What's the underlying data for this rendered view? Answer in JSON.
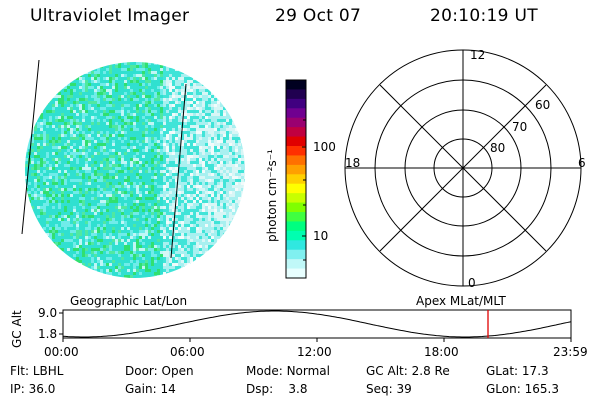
{
  "header": {
    "title": "Ultraviolet Imager",
    "date": "29 Oct 07",
    "time": "20:10:19 UT"
  },
  "colorbar": {
    "label": "photon cm⁻²s⁻¹",
    "ticks": [
      "100",
      "10"
    ],
    "colors": [
      "#000020",
      "#200050",
      "#400080",
      "#700090",
      "#9a0070",
      "#c00040",
      "#e00000",
      "#ff3000",
      "#ff7000",
      "#ffa000",
      "#ffd000",
      "#ffff00",
      "#c8ff00",
      "#80ff00",
      "#40ff40",
      "#00ff80",
      "#00ffb0",
      "#30e8e0",
      "#80f0f0",
      "#c0f8f8",
      "#e8ffff"
    ]
  },
  "polar": {
    "labels": {
      "top": "12",
      "left": "18",
      "right": "6",
      "bottom": "0"
    },
    "rings": [
      "60",
      "70",
      "80"
    ]
  },
  "timeline": {
    "left_label": "Geographic Lat/Lon",
    "right_label": "Apex MLat/MLT",
    "axis_label": "GC Alt",
    "y_max": "9.0",
    "y_min": "1.8",
    "times": [
      "00:00",
      "06:00",
      "12:00",
      "18:00",
      "23:59"
    ],
    "marker_color": "#e00000"
  },
  "info": {
    "row1": [
      {
        "label": "Flt:",
        "value": "LBHL"
      },
      {
        "label": "Door:",
        "value": "Open"
      },
      {
        "label": "Mode:",
        "value": "Normal"
      },
      {
        "label": "GC Alt:",
        "value": "2.8 Re"
      },
      {
        "label": "GLat:",
        "value": "17.3"
      }
    ],
    "row2": [
      {
        "label": "IP:",
        "value": "36.0"
      },
      {
        "label": "Gain:",
        "value": "14"
      },
      {
        "label": "Dsp:",
        "value": "3.8"
      },
      {
        "label": "Seq:",
        "value": "39"
      },
      {
        "label": "GLon:",
        "value": "165.3"
      }
    ]
  }
}
